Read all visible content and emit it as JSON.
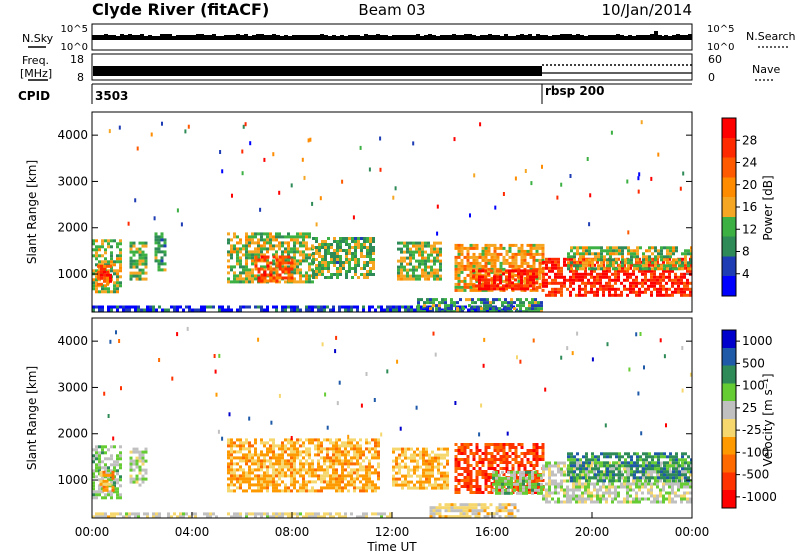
{
  "header": {
    "station": "Clyde River (fitACF)",
    "beam": "Beam 03",
    "date": "10/Jan/2014"
  },
  "top_panels": {
    "nsky_label": "N.Sky",
    "nsky_ticks": [
      "10^5",
      "10^0"
    ],
    "nsearch_label": "N.Search",
    "nsearch_ticks": [
      "10^5",
      "10^0"
    ],
    "freq_label": "Freq.",
    "freq_unit": "[MHz]",
    "freq_ticks": [
      "18",
      "8"
    ],
    "nave_label": "Nave",
    "nave_ticks": [
      "60",
      "0"
    ],
    "cpid_label": "CPID",
    "cpid_segments": [
      {
        "label": "3503",
        "start_hour": 0
      },
      {
        "label": "rbsp 200",
        "start_hour": 18
      }
    ]
  },
  "colors": {
    "power_scale": [
      "#0000ff",
      "#1e3cb4",
      "#2e8b57",
      "#3cb043",
      "#f5a623",
      "#ff8c00",
      "#ff5a00",
      "#ff2a00",
      "#ff0000"
    ],
    "velocity_scale": [
      "#ff0000",
      "#ff3300",
      "#ff6a00",
      "#ff9900",
      "#f5d76e",
      "#c0c0c0",
      "#66cc33",
      "#2e8b57",
      "#1e5aa8",
      "#0000cc"
    ]
  },
  "chart_data": [
    {
      "type": "heatmap",
      "panel": "power",
      "xlabel": "",
      "ylabel": "Slant Range [km]",
      "xlim": [
        0,
        24
      ],
      "ylim": [
        180,
        4500
      ],
      "yticks": [
        "1000",
        "2000",
        "3000",
        "4000"
      ],
      "colorbar_label": "Power [dB]",
      "colorbar_ticks": [
        "4",
        "8",
        "12",
        "16",
        "20",
        "24",
        "28"
      ],
      "colorbar_range": [
        0,
        32
      ],
      "echo_regions": [
        {
          "t0": 0.0,
          "t1": 1.1,
          "r0": 600,
          "r1": 1750,
          "level": 14
        },
        {
          "t0": 0.2,
          "t1": 0.8,
          "r0": 800,
          "r1": 1200,
          "level": 26
        },
        {
          "t0": 1.5,
          "t1": 2.2,
          "r0": 900,
          "r1": 1700,
          "level": 12
        },
        {
          "t0": 2.5,
          "t1": 2.9,
          "r0": 1100,
          "r1": 1900,
          "level": 10
        },
        {
          "t0": 5.4,
          "t1": 8.8,
          "r0": 800,
          "r1": 1900,
          "level": 14
        },
        {
          "t0": 6.5,
          "t1": 8.0,
          "r0": 850,
          "r1": 1400,
          "level": 24
        },
        {
          "t0": 8.8,
          "t1": 11.3,
          "r0": 900,
          "r1": 1800,
          "level": 12
        },
        {
          "t0": 12.2,
          "t1": 14.0,
          "r0": 900,
          "r1": 1700,
          "level": 14
        },
        {
          "t0": 14.5,
          "t1": 18.0,
          "r0": 650,
          "r1": 1650,
          "level": 18
        },
        {
          "t0": 15.2,
          "t1": 17.8,
          "r0": 650,
          "r1": 1100,
          "level": 28
        },
        {
          "t0": 18.0,
          "t1": 24.0,
          "r0": 550,
          "r1": 1350,
          "level": 28
        },
        {
          "t0": 19.0,
          "t1": 24.0,
          "r0": 1100,
          "r1": 1600,
          "level": 14
        },
        {
          "t0": 0.0,
          "t1": 17.0,
          "r0": 200,
          "r1": 320,
          "level": 4
        },
        {
          "t0": 13.0,
          "t1": 18.0,
          "r0": 220,
          "r1": 480,
          "level": 10
        }
      ]
    },
    {
      "type": "heatmap",
      "panel": "velocity",
      "xlabel": "Time UT",
      "ylabel": "Slant Range [km]",
      "xlim": [
        0,
        24
      ],
      "ylim": [
        180,
        4500
      ],
      "xticks": [
        "00:00",
        "04:00",
        "08:00",
        "12:00",
        "16:00",
        "20:00",
        "00:00"
      ],
      "yticks": [
        "1000",
        "2000",
        "3000",
        "4000"
      ],
      "colorbar_label": "Velocity [m s⁻¹]",
      "colorbar_ticks": [
        "1000",
        "500",
        "100",
        "25",
        "-25",
        "-100",
        "-500",
        "-1000"
      ],
      "colorbar_range": [
        -1200,
        1200
      ],
      "echo_regions": [
        {
          "t0": 0.0,
          "t1": 1.1,
          "r0": 600,
          "r1": 1750,
          "velocity": 300
        },
        {
          "t0": 0.3,
          "t1": 0.9,
          "r0": 800,
          "r1": 1200,
          "velocity": -400
        },
        {
          "t0": 1.5,
          "t1": 2.2,
          "r0": 900,
          "r1": 1700,
          "velocity": 200
        },
        {
          "t0": 5.4,
          "t1": 11.5,
          "r0": 750,
          "r1": 1900,
          "velocity": -300
        },
        {
          "t0": 12.0,
          "t1": 14.2,
          "r0": 800,
          "r1": 1700,
          "velocity": -250
        },
        {
          "t0": 14.5,
          "t1": 18.0,
          "r0": 700,
          "r1": 1800,
          "velocity": -800
        },
        {
          "t0": 16.0,
          "t1": 18.0,
          "r0": 700,
          "r1": 1200,
          "velocity": 300
        },
        {
          "t0": 18.0,
          "t1": 24.0,
          "r0": 550,
          "r1": 1400,
          "velocity": 150
        },
        {
          "t0": 19.0,
          "t1": 24.0,
          "r0": 1000,
          "r1": 1600,
          "velocity": 600
        },
        {
          "t0": 13.5,
          "t1": 17.0,
          "r0": 200,
          "r1": 500,
          "velocity": -60
        },
        {
          "t0": 0.0,
          "t1": 12.0,
          "r0": 200,
          "r1": 300,
          "velocity": 0
        }
      ]
    }
  ]
}
